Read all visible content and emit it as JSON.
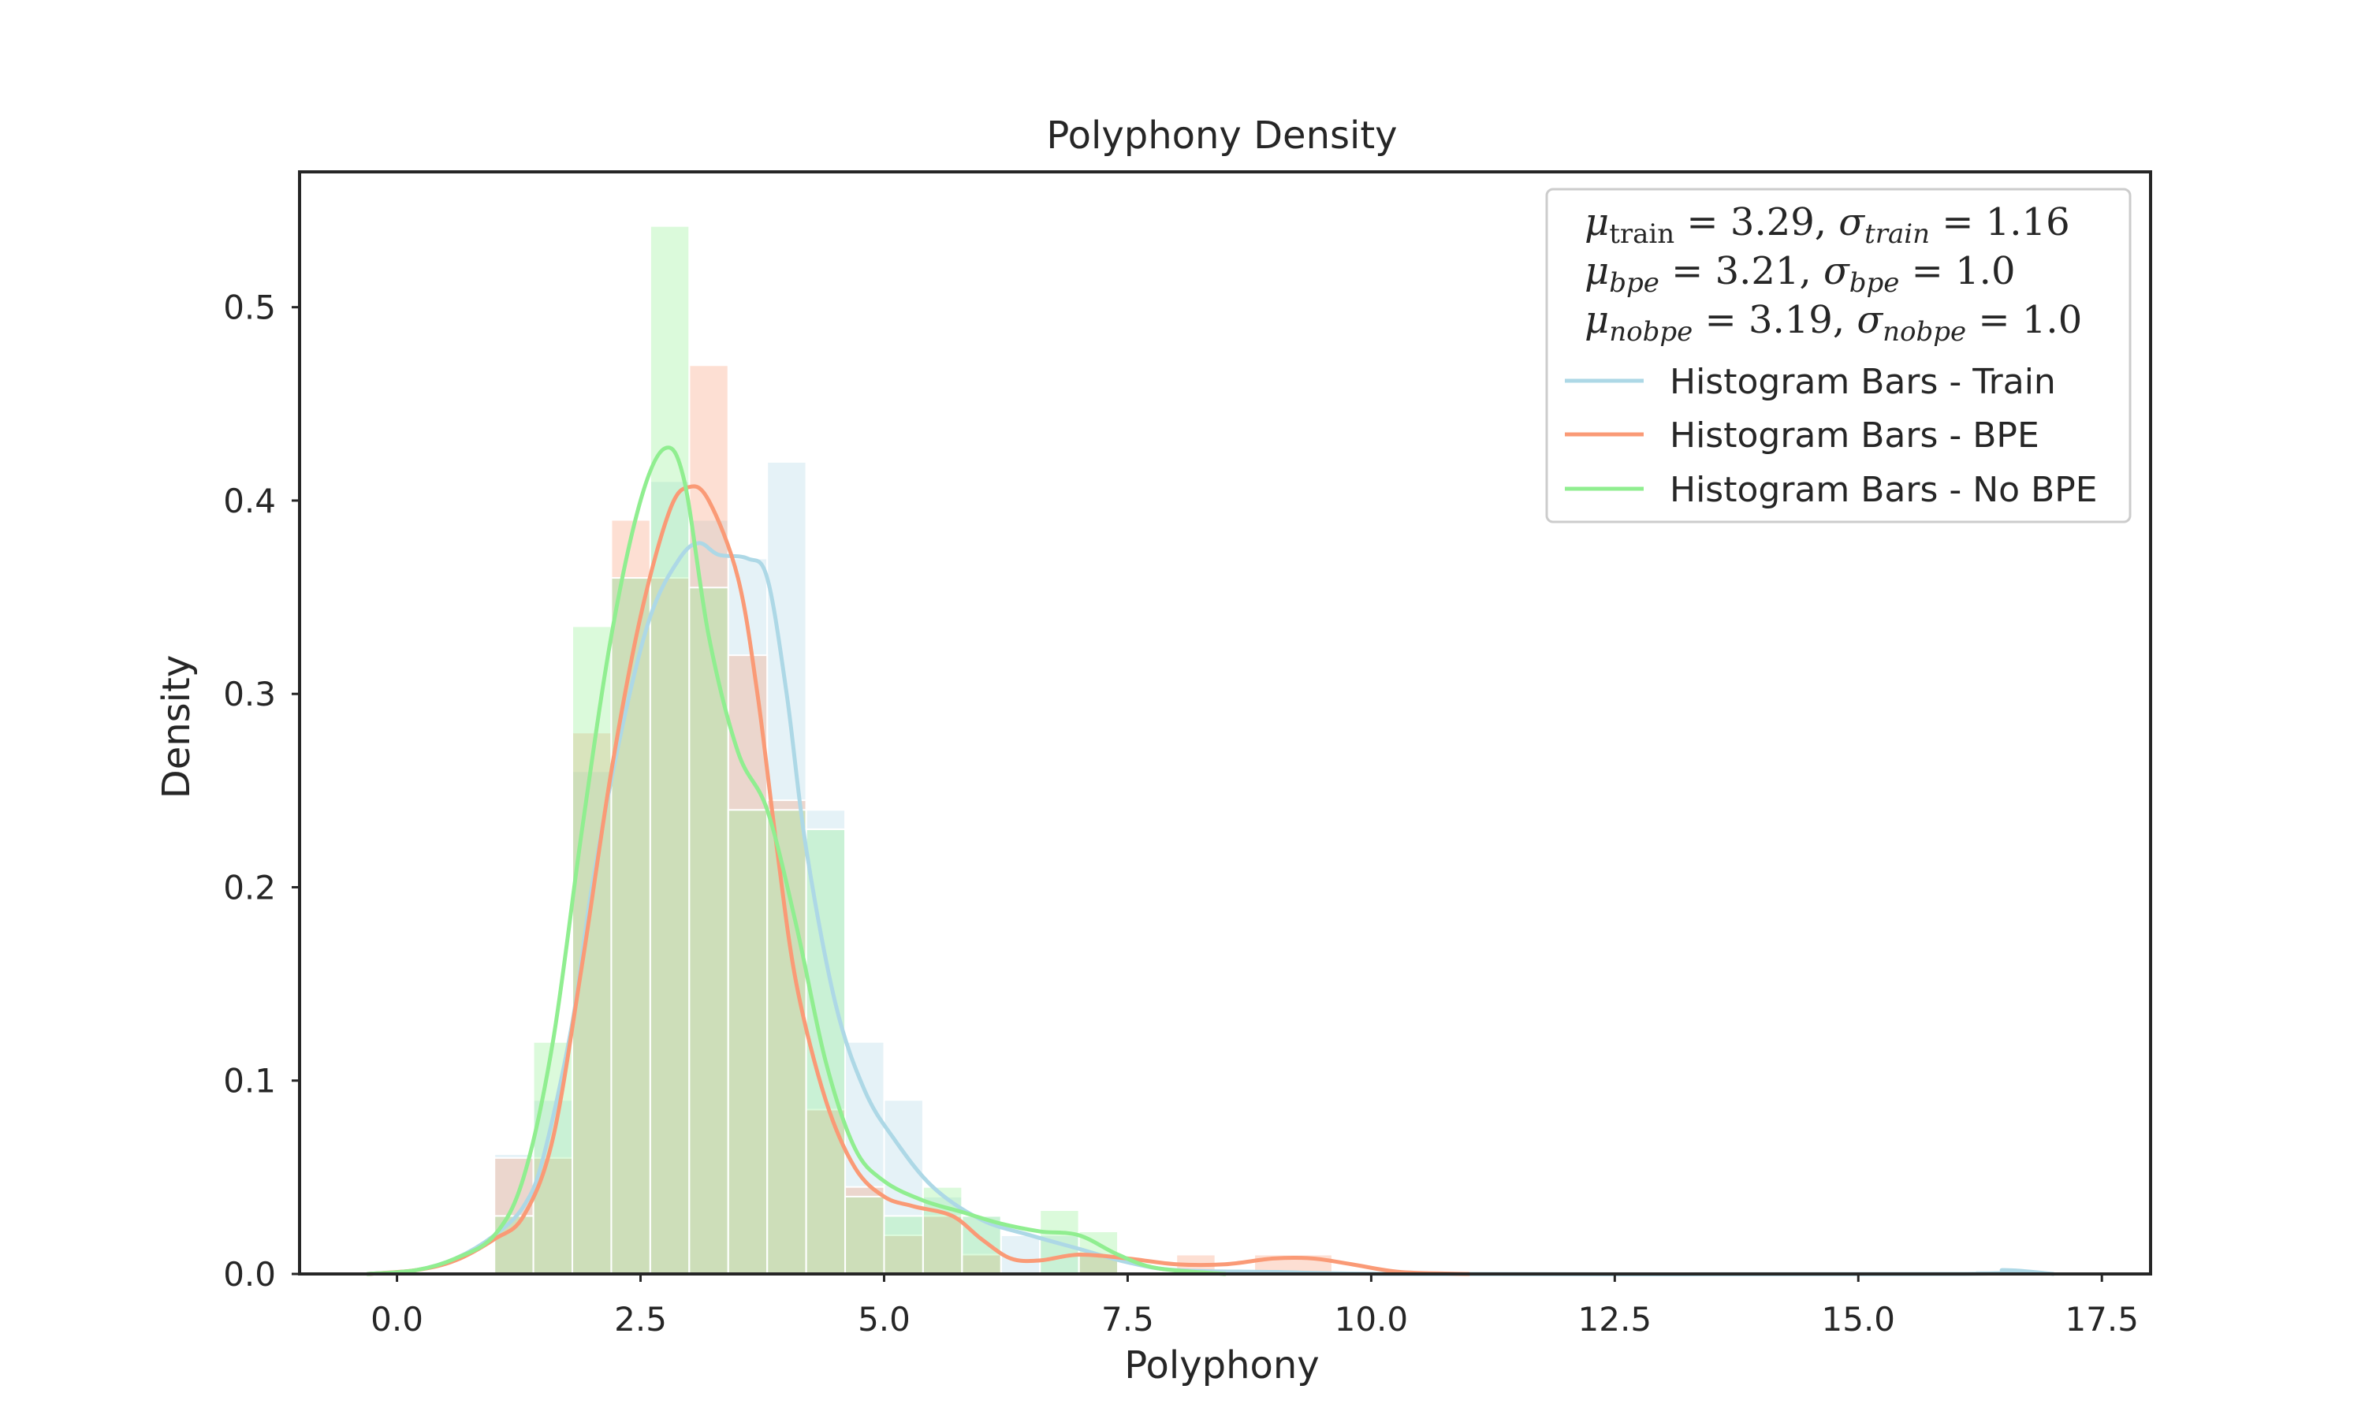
{
  "chart_data": {
    "type": "histogram-kde",
    "title": "Polyphony Density",
    "xlabel": "Polyphony",
    "ylabel": "Density",
    "xlim": [
      -1.0,
      18.0
    ],
    "ylim": [
      0.0,
      0.57
    ],
    "xticks": [
      0.0,
      2.5,
      5.0,
      7.5,
      10.0,
      12.5,
      15.0,
      17.5
    ],
    "xtick_labels": [
      "0.0",
      "2.5",
      "5.0",
      "7.5",
      "10.0",
      "12.5",
      "15.0",
      "17.5"
    ],
    "yticks": [
      0.0,
      0.1,
      0.2,
      0.3,
      0.4,
      0.5
    ],
    "ytick_labels": [
      "0.0",
      "0.1",
      "0.2",
      "0.3",
      "0.4",
      "0.5"
    ],
    "grid": false,
    "legend_position": "top-right",
    "stats_lines": [
      {
        "mu_sub": "train",
        "mu_val": "= 3.29,",
        "sigma_sub": "train",
        "sigma_val": "= 1.16"
      },
      {
        "mu_sub": "bpe",
        "mu_val": "= 3.21,",
        "sigma_sub": "bpe",
        "sigma_val": "= 1.0"
      },
      {
        "mu_sub": "nobpe",
        "mu_val": "= 3.19,",
        "sigma_sub": "nobpe",
        "sigma_val": "= 1.0"
      }
    ],
    "series": [
      {
        "name": "Histogram Bars - Train",
        "color": "#add8e6",
        "bins": [
          [
            1.0,
            1.4,
            0.062
          ],
          [
            1.4,
            1.8,
            0.09
          ],
          [
            1.8,
            2.2,
            0.26
          ],
          [
            2.2,
            2.6,
            0.36
          ],
          [
            2.6,
            3.0,
            0.41
          ],
          [
            3.0,
            3.4,
            0.39
          ],
          [
            3.4,
            3.8,
            0.37
          ],
          [
            3.8,
            4.2,
            0.42
          ],
          [
            4.2,
            4.6,
            0.24
          ],
          [
            4.6,
            5.0,
            0.12
          ],
          [
            5.0,
            5.4,
            0.09
          ],
          [
            5.4,
            5.8,
            0.04
          ],
          [
            5.8,
            6.2,
            0.03
          ],
          [
            6.2,
            6.6,
            0.02
          ],
          [
            6.6,
            7.0,
            0.02
          ],
          [
            7.0,
            7.4,
            0.01
          ],
          [
            16.2,
            16.8,
            0.002
          ]
        ],
        "kde": [
          [
            -0.3,
            0.0
          ],
          [
            0.2,
            0.002
          ],
          [
            0.6,
            0.008
          ],
          [
            1.0,
            0.02
          ],
          [
            1.3,
            0.035
          ],
          [
            1.5,
            0.06
          ],
          [
            1.8,
            0.13
          ],
          [
            2.0,
            0.2
          ],
          [
            2.3,
            0.28
          ],
          [
            2.6,
            0.34
          ],
          [
            2.9,
            0.37
          ],
          [
            3.1,
            0.378
          ],
          [
            3.3,
            0.372
          ],
          [
            3.6,
            0.37
          ],
          [
            3.8,
            0.36
          ],
          [
            4.0,
            0.3
          ],
          [
            4.2,
            0.22
          ],
          [
            4.5,
            0.14
          ],
          [
            4.8,
            0.095
          ],
          [
            5.1,
            0.07
          ],
          [
            5.5,
            0.045
          ],
          [
            6.0,
            0.028
          ],
          [
            6.5,
            0.02
          ],
          [
            7.0,
            0.013
          ],
          [
            7.5,
            0.006
          ],
          [
            8.0,
            0.002
          ],
          [
            9.0,
            0.001
          ],
          [
            10.5,
            0.0
          ],
          [
            16.0,
            0.0
          ],
          [
            16.5,
            0.002
          ],
          [
            17.0,
            0.0
          ]
        ]
      },
      {
        "name": "Histogram Bars - BPE",
        "color": "#fa9a76",
        "bins": [
          [
            1.0,
            1.4,
            0.06
          ],
          [
            1.4,
            1.8,
            0.06
          ],
          [
            1.8,
            2.2,
            0.28
          ],
          [
            2.2,
            2.6,
            0.39
          ],
          [
            2.6,
            3.0,
            0.36
          ],
          [
            3.0,
            3.4,
            0.47
          ],
          [
            3.4,
            3.8,
            0.32
          ],
          [
            3.8,
            4.2,
            0.245
          ],
          [
            4.2,
            4.6,
            0.085
          ],
          [
            4.6,
            5.0,
            0.045
          ],
          [
            5.0,
            5.4,
            0.02
          ],
          [
            5.4,
            5.8,
            0.03
          ],
          [
            5.8,
            6.2,
            0.01
          ],
          [
            7.0,
            7.4,
            0.01
          ],
          [
            8.0,
            8.4,
            0.01
          ],
          [
            8.8,
            9.6,
            0.01
          ]
        ],
        "kde": [
          [
            -0.3,
            0.0
          ],
          [
            0.2,
            0.002
          ],
          [
            0.6,
            0.007
          ],
          [
            1.0,
            0.018
          ],
          [
            1.3,
            0.03
          ],
          [
            1.6,
            0.07
          ],
          [
            1.9,
            0.16
          ],
          [
            2.2,
            0.26
          ],
          [
            2.5,
            0.34
          ],
          [
            2.8,
            0.395
          ],
          [
            3.0,
            0.407
          ],
          [
            3.2,
            0.4
          ],
          [
            3.5,
            0.36
          ],
          [
            3.7,
            0.3
          ],
          [
            3.9,
            0.22
          ],
          [
            4.1,
            0.15
          ],
          [
            4.4,
            0.09
          ],
          [
            4.7,
            0.055
          ],
          [
            5.0,
            0.04
          ],
          [
            5.3,
            0.035
          ],
          [
            5.7,
            0.03
          ],
          [
            6.0,
            0.018
          ],
          [
            6.3,
            0.008
          ],
          [
            6.6,
            0.007
          ],
          [
            7.0,
            0.01
          ],
          [
            7.5,
            0.008
          ],
          [
            8.0,
            0.005
          ],
          [
            8.5,
            0.005
          ],
          [
            9.0,
            0.008
          ],
          [
            9.4,
            0.008
          ],
          [
            9.8,
            0.005
          ],
          [
            10.3,
            0.001
          ],
          [
            11.0,
            0.0
          ]
        ]
      },
      {
        "name": "Histogram Bars - No BPE",
        "color": "#90ee90",
        "bins": [
          [
            1.0,
            1.4,
            0.03
          ],
          [
            1.4,
            1.8,
            0.12
          ],
          [
            1.8,
            2.2,
            0.335
          ],
          [
            2.2,
            2.6,
            0.36
          ],
          [
            2.6,
            3.0,
            0.542
          ],
          [
            3.0,
            3.4,
            0.355
          ],
          [
            3.4,
            3.8,
            0.24
          ],
          [
            3.8,
            4.2,
            0.24
          ],
          [
            4.2,
            4.6,
            0.23
          ],
          [
            4.6,
            5.0,
            0.04
          ],
          [
            5.0,
            5.4,
            0.03
          ],
          [
            5.4,
            5.8,
            0.045
          ],
          [
            5.8,
            6.2,
            0.03
          ],
          [
            6.6,
            7.0,
            0.033
          ],
          [
            7.0,
            7.4,
            0.022
          ]
        ],
        "kde": [
          [
            -0.3,
            0.0
          ],
          [
            0.2,
            0.002
          ],
          [
            0.6,
            0.008
          ],
          [
            1.0,
            0.02
          ],
          [
            1.3,
            0.05
          ],
          [
            1.6,
            0.12
          ],
          [
            1.9,
            0.23
          ],
          [
            2.2,
            0.33
          ],
          [
            2.5,
            0.4
          ],
          [
            2.75,
            0.427
          ],
          [
            2.95,
            0.41
          ],
          [
            3.2,
            0.33
          ],
          [
            3.5,
            0.27
          ],
          [
            3.8,
            0.24
          ],
          [
            4.1,
            0.18
          ],
          [
            4.4,
            0.11
          ],
          [
            4.7,
            0.065
          ],
          [
            5.0,
            0.048
          ],
          [
            5.4,
            0.038
          ],
          [
            5.8,
            0.032
          ],
          [
            6.2,
            0.026
          ],
          [
            6.6,
            0.022
          ],
          [
            7.0,
            0.02
          ],
          [
            7.4,
            0.01
          ],
          [
            7.8,
            0.003
          ],
          [
            8.5,
            0.0
          ]
        ]
      }
    ]
  }
}
